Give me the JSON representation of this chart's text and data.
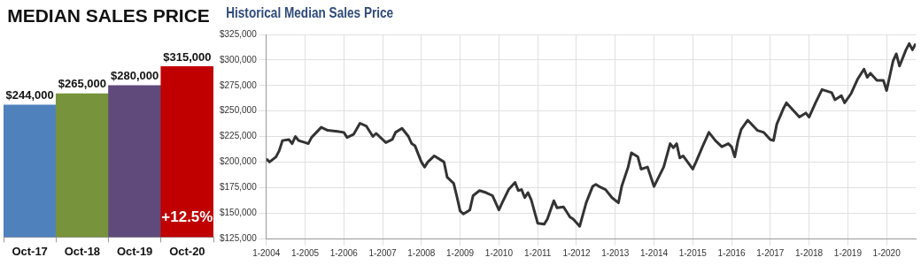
{
  "chart_data": [
    {
      "type": "bar",
      "title": "MEDIAN SALES PRICE",
      "categories": [
        "Oct-17",
        "Oct-18",
        "Oct-19",
        "Oct-20"
      ],
      "values": [
        244000,
        265000,
        280000,
        315000
      ],
      "colors": [
        "#4f81bd",
        "#77933c",
        "#604a7b",
        "#c00000"
      ],
      "value_labels": [
        "$244,000",
        "$265,000",
        "$280,000",
        "$315,000"
      ],
      "annotations": [
        "+12.5%"
      ]
    },
    {
      "type": "line",
      "title": "Historical Median Sales Price",
      "grid": true,
      "marker": "none",
      "line_style": "solid",
      "xlim": [
        "2004-01",
        "2020-10"
      ],
      "xticks": [
        {
          "value": "2004-01",
          "label": "1-2004"
        },
        {
          "value": "2005-01",
          "label": "1-2005"
        },
        {
          "value": "2006-01",
          "label": "1-2006"
        },
        {
          "value": "2007-01",
          "label": "1-2007"
        },
        {
          "value": "2008-01",
          "label": "1-2008"
        },
        {
          "value": "2009-01",
          "label": "1-2009"
        },
        {
          "value": "2010-01",
          "label": "1-2010"
        },
        {
          "value": "2011-01",
          "label": "1-2011"
        },
        {
          "value": "2012-01",
          "label": "1-2012"
        },
        {
          "value": "2013-01",
          "label": "1-2013"
        },
        {
          "value": "2014-01",
          "label": "1-2014"
        },
        {
          "value": "2015-01",
          "label": "1-2015"
        },
        {
          "value": "2016-01",
          "label": "1-2016"
        },
        {
          "value": "2017-01",
          "label": "1-2017"
        },
        {
          "value": "2018-01",
          "label": "1-2018"
        },
        {
          "value": "2019-01",
          "label": "1-2019"
        },
        {
          "value": "2020-01",
          "label": "1-2020"
        }
      ],
      "ylim": [
        125000,
        325000
      ],
      "yticks": [
        {
          "value": 125000,
          "label": "$125,000"
        },
        {
          "value": 150000,
          "label": "$150,000"
        },
        {
          "value": 175000,
          "label": "$175,000"
        },
        {
          "value": 200000,
          "label": "$200,000"
        },
        {
          "value": 225000,
          "label": "$225,000"
        },
        {
          "value": 250000,
          "label": "$250,000"
        },
        {
          "value": 275000,
          "label": "$275,000"
        },
        {
          "value": 300000,
          "label": "$300,000"
        },
        {
          "value": 325000,
          "label": "$325,000"
        }
      ],
      "series": [
        {
          "color": "#333333",
          "x": [
            "2004-01",
            "2004-02",
            "2004-04",
            "2004-05",
            "2004-06",
            "2004-08",
            "2004-09",
            "2004-10",
            "2004-11",
            "2005-01",
            "2005-02",
            "2005-03",
            "2005-06",
            "2005-08",
            "2005-11",
            "2006-01",
            "2006-02",
            "2006-04",
            "2006-06",
            "2006-08",
            "2006-10",
            "2006-11",
            "2007-02",
            "2007-04",
            "2007-05",
            "2007-07",
            "2007-09",
            "2007-10",
            "2007-11",
            "2008-01",
            "2008-02",
            "2008-03",
            "2008-05",
            "2008-08",
            "2008-09",
            "2008-11",
            "2008-12",
            "2009-01",
            "2009-02",
            "2009-04",
            "2009-05",
            "2009-07",
            "2009-09",
            "2009-11",
            "2010-01",
            "2010-02",
            "2010-04",
            "2010-06",
            "2010-07",
            "2010-08",
            "2010-09",
            "2010-10",
            "2010-11",
            "2011-01",
            "2011-03",
            "2011-04",
            "2011-06",
            "2011-07",
            "2011-09",
            "2011-11",
            "2011-12",
            "2012-02",
            "2012-04",
            "2012-06",
            "2012-07",
            "2012-08",
            "2012-10",
            "2012-12",
            "2013-02",
            "2013-03",
            "2013-05",
            "2013-06",
            "2013-08",
            "2013-09",
            "2013-11",
            "2014-01",
            "2014-04",
            "2014-06",
            "2014-07",
            "2014-08",
            "2014-09",
            "2014-10",
            "2015-01",
            "2015-02",
            "2015-04",
            "2015-06",
            "2015-08",
            "2015-10",
            "2015-12",
            "2016-01",
            "2016-02",
            "2016-03",
            "2016-04",
            "2016-06",
            "2016-09",
            "2016-11",
            "2017-01",
            "2017-02",
            "2017-03",
            "2017-05",
            "2017-06",
            "2017-08",
            "2017-10",
            "2017-12",
            "2018-01",
            "2018-03",
            "2018-05",
            "2018-08",
            "2018-09",
            "2018-11",
            "2018-12",
            "2019-02",
            "2019-04",
            "2019-06",
            "2019-07",
            "2019-08",
            "2019-10",
            "2019-12",
            "2020-01",
            "2020-03",
            "2020-04",
            "2020-05",
            "2020-07",
            "2020-08",
            "2020-09",
            "2020-10"
          ],
          "values": [
            203000,
            200000,
            205000,
            211000,
            221000,
            222000,
            218000,
            225000,
            221000,
            219000,
            218000,
            224000,
            234000,
            231000,
            230000,
            229000,
            224000,
            227000,
            238000,
            235000,
            225000,
            228000,
            219000,
            222000,
            229000,
            233000,
            225000,
            218000,
            216000,
            200000,
            195000,
            200000,
            206000,
            200000,
            185000,
            179000,
            166000,
            152000,
            149000,
            153000,
            167000,
            172000,
            170000,
            167000,
            153000,
            160000,
            173000,
            180000,
            172000,
            173000,
            165000,
            170000,
            163000,
            140000,
            139000,
            144000,
            162000,
            155000,
            156000,
            146000,
            144000,
            137000,
            160000,
            176000,
            178000,
            176000,
            173000,
            165000,
            160000,
            176000,
            195000,
            209000,
            205000,
            193000,
            195000,
            176000,
            195000,
            218000,
            214000,
            218000,
            204000,
            206000,
            193000,
            200000,
            215000,
            229000,
            221000,
            215000,
            218000,
            215000,
            205000,
            221000,
            232000,
            241000,
            231000,
            229000,
            222000,
            221000,
            237000,
            252000,
            258000,
            251000,
            244000,
            248000,
            244000,
            258000,
            271000,
            268000,
            261000,
            265000,
            258000,
            267000,
            281000,
            291000,
            283000,
            287000,
            280000,
            280000,
            270000,
            299000,
            306000,
            294000,
            310000,
            316000,
            310000,
            316000
          ]
        }
      ]
    }
  ]
}
